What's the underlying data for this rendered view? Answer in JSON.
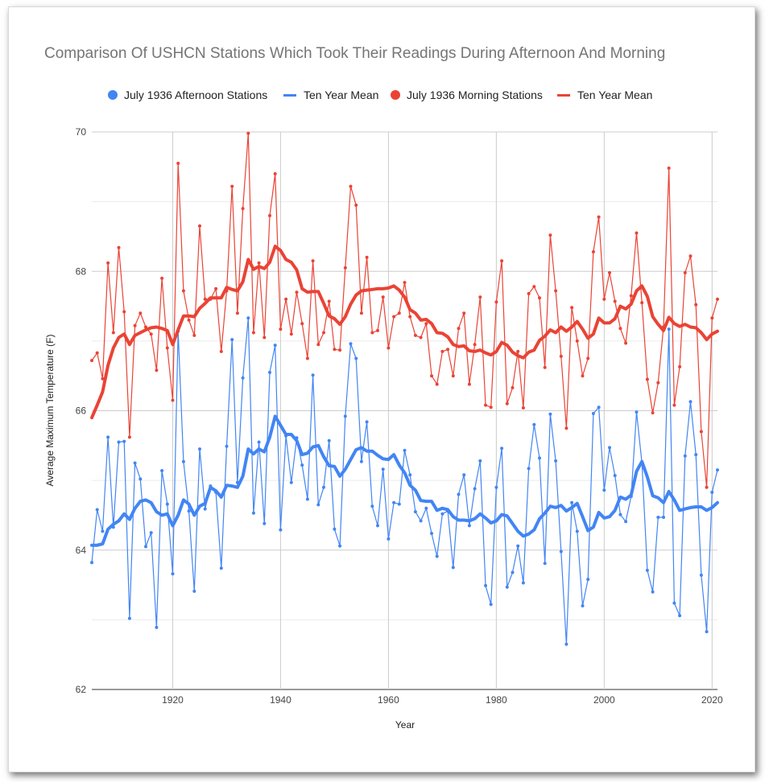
{
  "chart_data": {
    "type": "line",
    "title": "Comparison Of USHCN Stations Which Took Their Readings During Afternoon And Morning",
    "xlabel": "Year",
    "ylabel": "Average Maximum Temperature (F)",
    "xlim": [
      1905,
      2021
    ],
    "ylim": [
      62,
      70
    ],
    "x_ticks": [
      1920,
      1940,
      1960,
      1980,
      2000,
      2020
    ],
    "y_ticks": [
      62,
      64,
      66,
      68,
      70
    ],
    "grid": true,
    "legend_position": "top",
    "x": [
      1905,
      1906,
      1907,
      1908,
      1909,
      1910,
      1911,
      1912,
      1913,
      1914,
      1915,
      1916,
      1917,
      1918,
      1919,
      1920,
      1921,
      1922,
      1923,
      1924,
      1925,
      1926,
      1927,
      1928,
      1929,
      1930,
      1931,
      1932,
      1933,
      1934,
      1935,
      1936,
      1937,
      1938,
      1939,
      1940,
      1941,
      1942,
      1943,
      1944,
      1945,
      1946,
      1947,
      1948,
      1949,
      1950,
      1951,
      1952,
      1953,
      1954,
      1955,
      1956,
      1957,
      1958,
      1959,
      1960,
      1961,
      1962,
      1963,
      1964,
      1965,
      1966,
      1967,
      1968,
      1969,
      1970,
      1971,
      1972,
      1973,
      1974,
      1975,
      1976,
      1977,
      1978,
      1979,
      1980,
      1981,
      1982,
      1983,
      1984,
      1985,
      1986,
      1987,
      1988,
      1989,
      1990,
      1991,
      1992,
      1993,
      1994,
      1995,
      1996,
      1997,
      1998,
      1999,
      2000,
      2001,
      2002,
      2003,
      2004,
      2005,
      2006,
      2007,
      2008,
      2009,
      2010,
      2011,
      2012,
      2013,
      2014,
      2015,
      2016,
      2017,
      2018,
      2019,
      2020,
      2021
    ],
    "series": [
      {
        "name": "July 1936 Afternoon Stations",
        "color": "#4285f4",
        "style": "thin-line-markers",
        "values": [
          63.82,
          64.58,
          64.27,
          65.62,
          64.33,
          65.55,
          65.56,
          63.02,
          65.25,
          65.02,
          64.05,
          64.25,
          62.89,
          65.14,
          64.66,
          63.66,
          67.14,
          65.27,
          64.56,
          63.41,
          65.45,
          64.59,
          64.92,
          64.83,
          63.74,
          65.49,
          67.02,
          64.97,
          66.47,
          67.33,
          64.53,
          65.55,
          64.38,
          66.55,
          66.94,
          64.29,
          65.64,
          64.97,
          65.61,
          65.22,
          64.73,
          66.51,
          64.65,
          64.9,
          65.57,
          64.3,
          64.06,
          65.92,
          66.96,
          66.75,
          65.27,
          65.84,
          64.63,
          64.35,
          65.16,
          64.16,
          64.68,
          64.66,
          65.43,
          65.08,
          64.55,
          64.42,
          64.6,
          64.24,
          63.91,
          64.52,
          64.56,
          63.75,
          64.8,
          65.08,
          64.35,
          64.88,
          65.28,
          63.49,
          63.22,
          64.9,
          65.46,
          63.47,
          63.68,
          64.06,
          63.53,
          65.17,
          65.8,
          65.32,
          63.81,
          65.95,
          65.28,
          63.98,
          62.65,
          64.68,
          64.27,
          63.2,
          63.58,
          65.96,
          66.05,
          64.86,
          65.47,
          65.07,
          64.51,
          64.41,
          64.77,
          65.98,
          65.25,
          63.71,
          63.4,
          64.47,
          64.47,
          67.17,
          63.24,
          63.06,
          65.35,
          66.13,
          65.37,
          63.64,
          62.83,
          64.83,
          65.15
        ]
      },
      {
        "name": "Ten Year Mean",
        "color": "#4285f4",
        "style": "thick-line",
        "values": [
          64.07,
          64.07,
          64.09,
          64.3,
          64.37,
          64.42,
          64.52,
          64.44,
          64.6,
          64.7,
          64.72,
          64.68,
          64.55,
          64.5,
          64.52,
          64.35,
          64.5,
          64.72,
          64.66,
          64.5,
          64.63,
          64.67,
          64.9,
          64.85,
          64.76,
          64.93,
          64.92,
          64.9,
          65.06,
          65.45,
          65.38,
          65.45,
          65.41,
          65.62,
          65.92,
          65.79,
          65.66,
          65.66,
          65.57,
          65.37,
          65.39,
          65.48,
          65.5,
          65.34,
          65.21,
          65.2,
          65.06,
          65.16,
          65.3,
          65.44,
          65.47,
          65.42,
          65.42,
          65.36,
          65.31,
          65.3,
          65.37,
          65.22,
          65.11,
          64.93,
          64.86,
          64.71,
          64.7,
          64.7,
          64.57,
          64.6,
          64.58,
          64.48,
          64.43,
          64.43,
          64.42,
          64.45,
          64.52,
          64.46,
          64.39,
          64.42,
          64.51,
          64.49,
          64.38,
          64.27,
          64.2,
          64.23,
          64.29,
          64.45,
          64.53,
          64.63,
          64.61,
          64.64,
          64.56,
          64.61,
          64.67,
          64.48,
          64.28,
          64.33,
          64.54,
          64.46,
          64.48,
          64.57,
          64.76,
          64.73,
          64.79,
          65.13,
          65.27,
          65.05,
          64.78,
          64.75,
          64.68,
          64.84,
          64.72,
          64.57,
          64.59,
          64.61,
          64.62,
          64.62,
          64.57,
          64.61,
          64.68
        ]
      },
      {
        "name": "July 1936 Morning Stations",
        "color": "#ea4335",
        "style": "thin-line-markers",
        "values": [
          66.72,
          66.83,
          66.46,
          68.12,
          67.12,
          68.34,
          67.42,
          65.62,
          67.22,
          67.4,
          67.2,
          67.1,
          66.58,
          67.9,
          66.9,
          66.15,
          69.55,
          67.72,
          67.3,
          67.08,
          68.65,
          67.6,
          67.6,
          67.75,
          66.85,
          67.72,
          69.22,
          67.4,
          68.9,
          69.98,
          67.12,
          68.12,
          67.05,
          68.8,
          69.4,
          67.17,
          67.6,
          67.1,
          67.7,
          67.25,
          66.75,
          68.15,
          66.95,
          67.12,
          67.57,
          66.88,
          66.87,
          68.05,
          69.22,
          68.95,
          67.4,
          68.2,
          67.12,
          67.15,
          67.63,
          66.9,
          67.35,
          67.4,
          67.84,
          67.35,
          67.08,
          67.05,
          67.25,
          66.5,
          66.38,
          66.85,
          66.88,
          66.5,
          67.18,
          67.4,
          66.38,
          66.95,
          67.63,
          66.08,
          66.05,
          67.56,
          68.15,
          66.1,
          66.33,
          66.85,
          66.04,
          67.68,
          67.78,
          67.62,
          66.62,
          68.52,
          67.72,
          66.78,
          65.75,
          67.48,
          67.0,
          66.5,
          66.75,
          68.28,
          68.78,
          67.6,
          67.98,
          67.57,
          67.18,
          66.97,
          67.65,
          68.55,
          67.55,
          66.45,
          65.97,
          66.4,
          67.2,
          69.48,
          66.08,
          66.63,
          67.98,
          68.22,
          67.52,
          65.7,
          64.9,
          67.33,
          67.6
        ]
      },
      {
        "name": "Ten Year Mean",
        "color": "#ea4335",
        "style": "thick-line",
        "values": [
          65.9,
          66.08,
          66.27,
          66.65,
          66.9,
          67.05,
          67.1,
          66.95,
          67.08,
          67.12,
          67.16,
          67.19,
          67.2,
          67.18,
          67.15,
          66.95,
          67.16,
          67.36,
          67.36,
          67.35,
          67.47,
          67.54,
          67.62,
          67.62,
          67.62,
          67.77,
          67.74,
          67.72,
          67.85,
          68.17,
          68.03,
          68.07,
          68.04,
          68.13,
          68.36,
          68.3,
          68.17,
          68.13,
          68.02,
          67.75,
          67.7,
          67.71,
          67.71,
          67.54,
          67.36,
          67.32,
          67.24,
          67.35,
          67.53,
          67.66,
          67.72,
          67.73,
          67.74,
          67.75,
          67.75,
          67.76,
          67.79,
          67.73,
          67.63,
          67.45,
          67.4,
          67.3,
          67.31,
          67.25,
          67.12,
          67.11,
          67.06,
          66.95,
          66.92,
          66.93,
          66.86,
          66.85,
          66.87,
          66.83,
          66.8,
          66.85,
          66.98,
          66.94,
          66.84,
          66.79,
          66.76,
          66.84,
          66.87,
          67.01,
          67.07,
          67.16,
          67.12,
          67.2,
          67.14,
          67.2,
          67.28,
          67.17,
          67.04,
          67.1,
          67.33,
          67.26,
          67.26,
          67.32,
          67.5,
          67.46,
          67.53,
          67.72,
          67.79,
          67.64,
          67.35,
          67.24,
          67.15,
          67.34,
          67.25,
          67.21,
          67.24,
          67.2,
          67.19,
          67.12,
          67.02,
          67.1,
          67.14
        ]
      }
    ]
  }
}
